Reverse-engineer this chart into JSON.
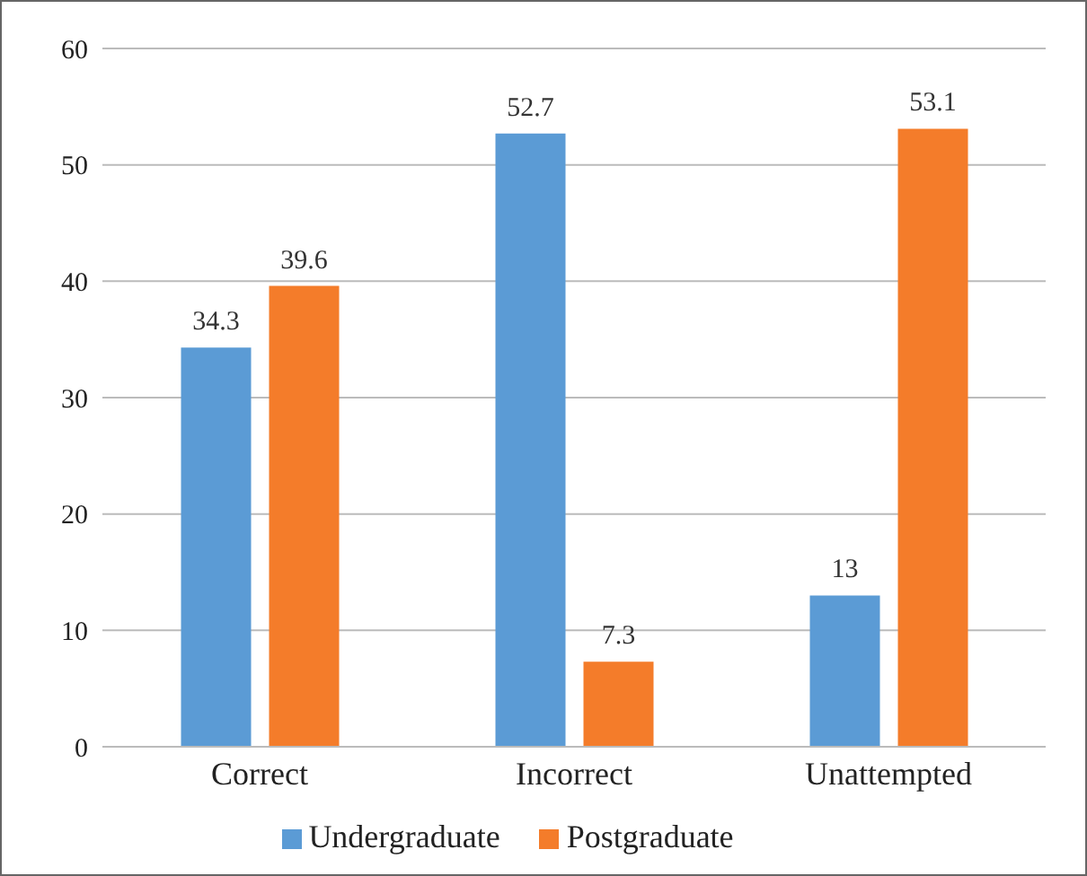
{
  "chart_data": {
    "type": "bar",
    "categories": [
      "Correct",
      "Incorrect",
      "Unattempted"
    ],
    "series": [
      {
        "name": "Undergraduate",
        "color": "#5b9bd5",
        "values": [
          34.3,
          52.7,
          13
        ]
      },
      {
        "name": "Postgraduate",
        "color": "#f47c2a",
        "values": [
          39.6,
          7.3,
          53.1
        ]
      }
    ],
    "ylim": [
      0,
      60
    ],
    "yticks": [
      0,
      10,
      20,
      30,
      40,
      50,
      60
    ],
    "grid": "y",
    "legend": "bottom",
    "data_labels": true
  }
}
